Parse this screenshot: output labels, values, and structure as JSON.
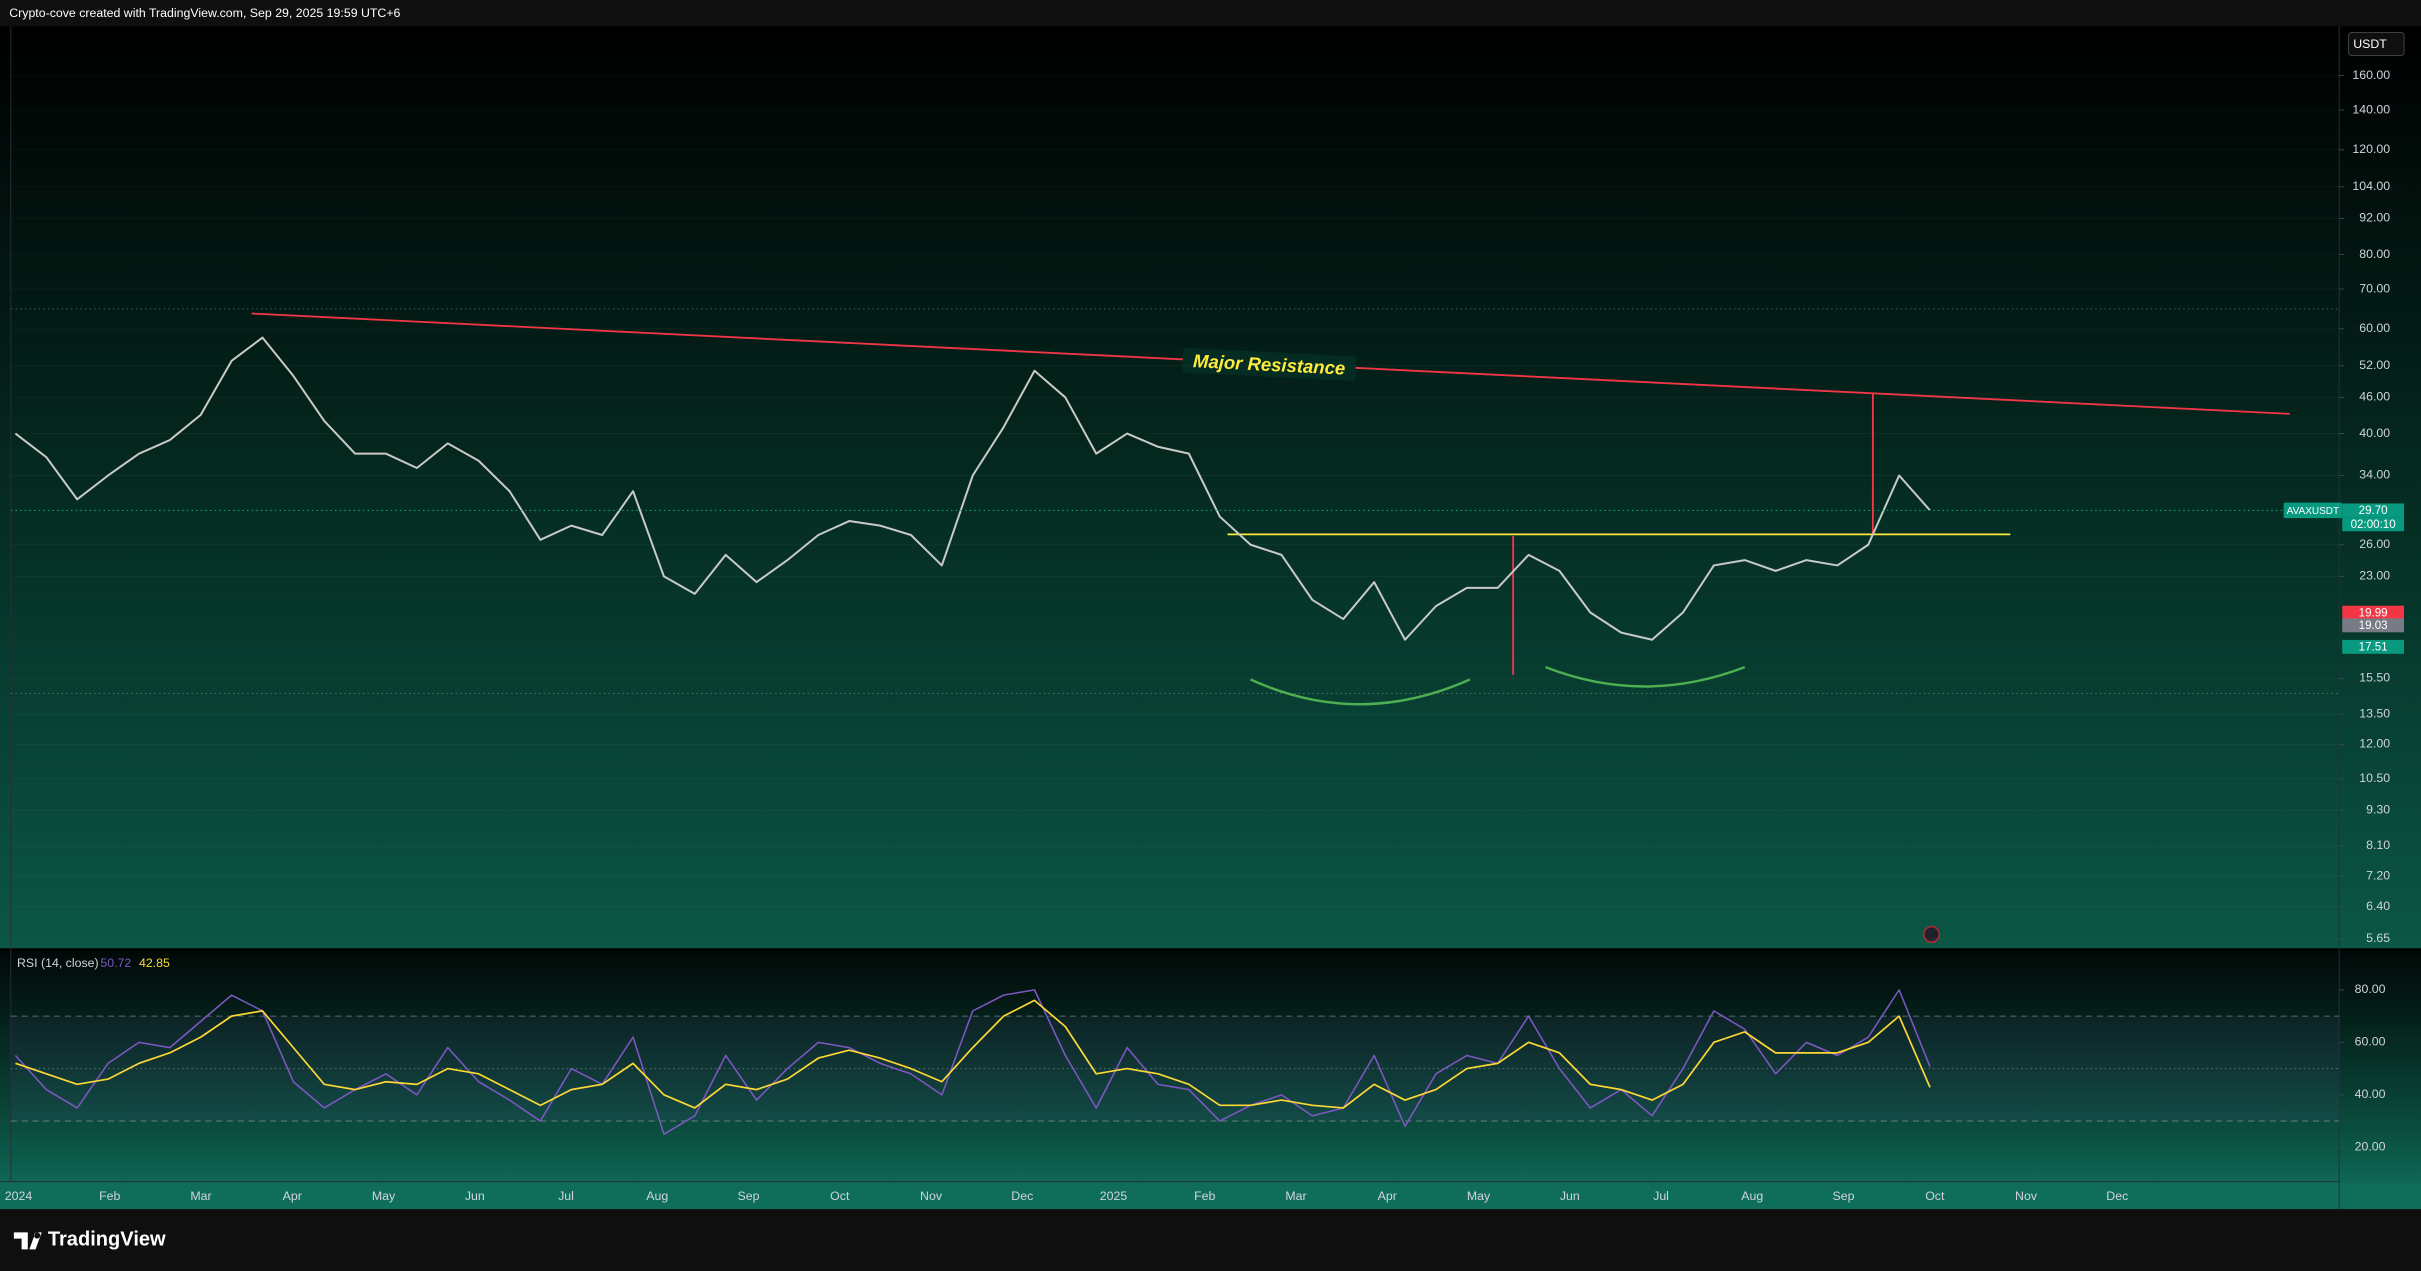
{
  "header": {
    "text": "Crypto-cove created with TradingView.com, Sep 29, 2025 19:59 UTC+6"
  },
  "footer": {
    "brand": "TradingView"
  },
  "chart_data": [
    {
      "type": "line",
      "symbol": "AVAXUSDT",
      "currency": "USDT",
      "countdown": "02:00:10",
      "log_scale": true,
      "grid": true,
      "annotations": [
        "Major Resistance"
      ],
      "xticks": [
        "2024",
        "Feb",
        "Mar",
        "Apr",
        "May",
        "Jun",
        "Jul",
        "Aug",
        "Sep",
        "Oct",
        "Nov",
        "Dec",
        "2025",
        "Feb",
        "Mar",
        "Apr",
        "May",
        "Jun",
        "Jul",
        "Aug",
        "Sep",
        "Oct",
        "Nov",
        "Dec"
      ],
      "ylim": [
        5.45,
        192.5
      ],
      "yticks": [
        {
          "value": 160,
          "label": "160.00"
        },
        {
          "value": 140,
          "label": "140.00"
        },
        {
          "value": 120,
          "label": "120.00"
        },
        {
          "value": 104,
          "label": "104.00"
        },
        {
          "value": 92,
          "label": "92.00"
        },
        {
          "value": 80,
          "label": "80.00"
        },
        {
          "value": 70,
          "label": "70.00"
        },
        {
          "value": 60,
          "label": "60.00"
        },
        {
          "value": 52,
          "label": "52.00"
        },
        {
          "value": 46,
          "label": "46.00"
        },
        {
          "value": 40,
          "label": "40.00"
        },
        {
          "value": 34,
          "label": "34.00"
        },
        {
          "value": 26,
          "label": "26.00"
        },
        {
          "value": 23,
          "label": "23.00"
        },
        {
          "value": 15.5,
          "label": "15.50"
        },
        {
          "value": 13.5,
          "label": "13.50"
        },
        {
          "value": 12,
          "label": "12.00"
        },
        {
          "value": 10.5,
          "label": "10.50"
        },
        {
          "value": 9.3,
          "label": "9.30"
        },
        {
          "value": 8.1,
          "label": "8.10"
        },
        {
          "value": 7.2,
          "label": "7.20"
        },
        {
          "value": 6.4,
          "label": "6.40"
        },
        {
          "value": 5.65,
          "label": "5.65"
        }
      ],
      "price_markers": [
        {
          "value": 29.7,
          "label": "29.70",
          "color": "#089981"
        },
        {
          "value": 19.99,
          "label": "19.99",
          "color": "#f23645"
        },
        {
          "value": 19.03,
          "label": "19.03",
          "color": "#787b86"
        },
        {
          "value": 17.51,
          "label": "17.51",
          "color": "#089981"
        }
      ],
      "series": [
        {
          "name": "AVAXUSDT",
          "color": "#c9c9c9",
          "values": [
            40,
            36.5,
            31,
            34,
            37,
            39,
            43,
            53,
            58,
            50,
            42,
            37,
            37,
            35,
            38.5,
            36,
            32,
            26.5,
            28,
            27,
            32,
            23,
            21.5,
            25,
            22.5,
            24.5,
            27,
            28.5,
            28,
            27,
            24,
            34,
            41,
            51,
            46,
            37,
            40,
            38,
            37,
            29,
            26,
            25,
            21,
            19.5,
            22.5,
            18,
            20.5,
            22,
            22,
            25,
            23.5,
            20,
            18.5,
            18,
            20,
            24,
            24.5,
            23.5,
            24.5,
            24,
            26,
            34,
            29.7
          ]
        }
      ]
    },
    {
      "type": "line",
      "title": "RSI (14, close)",
      "ylim": [
        7,
        94.7
      ],
      "yticks": [
        {
          "value": 80,
          "label": "80.00"
        },
        {
          "value": 60,
          "label": "60.00"
        },
        {
          "value": 40,
          "label": "40.00"
        },
        {
          "value": 20,
          "label": "20.00"
        }
      ],
      "levels": [
        70,
        50,
        30
      ],
      "series": [
        {
          "color": "#7e57c2",
          "values": [
            55,
            42,
            35,
            52,
            60,
            58,
            68,
            78,
            72,
            45,
            35,
            42,
            48,
            40,
            58,
            45,
            38,
            30,
            50,
            44,
            62,
            25,
            32,
            55,
            38,
            50,
            60,
            58,
            52,
            48,
            40,
            72,
            78,
            80,
            55,
            35,
            58,
            44,
            42,
            30,
            36,
            40,
            32,
            35,
            55,
            28,
            48,
            55,
            52,
            70,
            50,
            35,
            42,
            32,
            50,
            72,
            65,
            48,
            60,
            55,
            62,
            80,
            50.72
          ]
        },
        {
          "color": "#fdd835",
          "values": [
            52,
            48,
            44,
            46,
            52,
            56,
            62,
            70,
            72,
            58,
            44,
            42,
            45,
            44,
            50,
            48,
            42,
            36,
            42,
            44,
            52,
            40,
            35,
            44,
            42,
            46,
            54,
            57,
            54,
            50,
            45,
            58,
            70,
            76,
            66,
            48,
            50,
            48,
            44,
            36,
            36,
            38,
            36,
            35,
            44,
            38,
            42,
            50,
            52,
            60,
            56,
            44,
            42,
            38,
            44,
            60,
            64,
            56,
            56,
            56,
            60,
            70,
            42.85
          ]
        }
      ]
    }
  ]
}
